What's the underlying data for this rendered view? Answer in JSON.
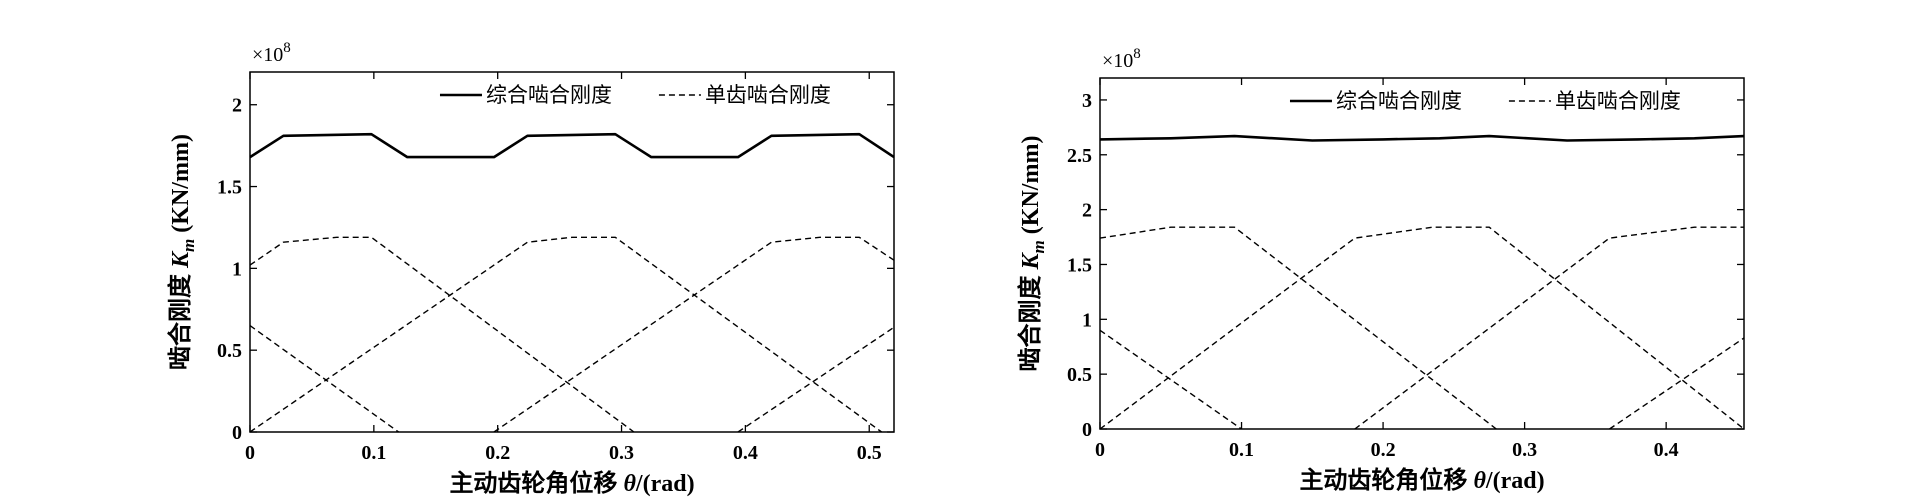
{
  "chart_data": [
    {
      "type": "line",
      "title": "",
      "xlabel_prefix": "主动齿轮角位移 ",
      "xlabel_symbol": "θ",
      "xlabel_suffix": "/(rad)",
      "ylabel_prefix": "啮合刚度 ",
      "ylabel_symbol": "K",
      "ylabel_sub": "m",
      "ylabel_suffix": " (KN/mm)",
      "y_multiplier": "×10",
      "y_multiplier_exp": "8",
      "xlim": [
        0,
        0.52
      ],
      "ylim": [
        0,
        2.2
      ],
      "xticks": [
        0,
        0.1,
        0.2,
        0.3,
        0.4,
        0.5
      ],
      "xtick_labels": [
        "0",
        "0.1",
        "0.2",
        "0.3",
        "0.4",
        "0.5"
      ],
      "yticks": [
        0,
        0.5,
        1,
        1.5,
        2
      ],
      "ytick_labels": [
        "0",
        "0.5",
        "1",
        "1.5",
        "2"
      ],
      "legend_position": "top-right",
      "legend": [
        "综合啮合刚度",
        "单齿啮合刚度"
      ],
      "series": [
        {
          "name": "综合啮合刚度",
          "style": "solid",
          "x": [
            0,
            0.027,
            0.098,
            0.127,
            0.197,
            0.224,
            0.295,
            0.324,
            0.394,
            0.421,
            0.492,
            0.52
          ],
          "y": [
            1.68,
            1.81,
            1.82,
            1.68,
            1.68,
            1.81,
            1.82,
            1.68,
            1.68,
            1.81,
            1.82,
            1.68
          ]
        },
        {
          "name": "单齿啮合刚度",
          "style": "dashed",
          "x": [
            0,
            0.12
          ],
          "y": [
            0.65,
            0
          ]
        },
        {
          "name": "单齿啮合刚度",
          "style": "dashed",
          "x": [
            0,
            0.027,
            0.07,
            0.098,
            0.31
          ],
          "y": [
            1.02,
            1.16,
            1.19,
            1.19,
            0
          ]
        },
        {
          "name": "单齿啮合刚度",
          "style": "dashed",
          "x": [
            0,
            0.197,
            0.224,
            0.26,
            0.295,
            0.51
          ],
          "y": [
            0,
            1.02,
            1.16,
            1.19,
            1.19,
            0
          ]
        },
        {
          "name": "单齿啮合刚度",
          "style": "dashed",
          "x": [
            0.197,
            0.394,
            0.421,
            0.46,
            0.492,
            0.52
          ],
          "y": [
            0,
            1.02,
            1.16,
            1.19,
            1.19,
            1.05
          ]
        },
        {
          "name": "单齿啮合刚度",
          "style": "dashed",
          "x": [
            0.394,
            0.52
          ],
          "y": [
            0,
            0.64
          ]
        }
      ]
    },
    {
      "type": "line",
      "title": "",
      "xlabel_prefix": "主动齿轮角位移 ",
      "xlabel_symbol": "θ",
      "xlabel_suffix": "/(rad)",
      "ylabel_prefix": "啮合刚度 ",
      "ylabel_symbol": "K",
      "ylabel_sub": "m",
      "ylabel_suffix": " (KN/mm)",
      "y_multiplier": "×10",
      "y_multiplier_exp": "8",
      "xlim": [
        0,
        0.455
      ],
      "ylim": [
        0,
        3.2
      ],
      "xticks": [
        0,
        0.1,
        0.2,
        0.3,
        0.4
      ],
      "xtick_labels": [
        "0",
        "0.1",
        "0.2",
        "0.3",
        "0.4"
      ],
      "yticks": [
        0,
        0.5,
        1,
        1.5,
        2,
        2.5,
        3
      ],
      "ytick_labels": [
        "0",
        "0.5",
        "1",
        "1.5",
        "2",
        "2.5",
        "3"
      ],
      "legend_position": "top-right",
      "legend": [
        "综合啮合刚度",
        "单齿啮合刚度"
      ],
      "series": [
        {
          "name": "综合啮合刚度",
          "style": "solid",
          "x": [
            0,
            0.05,
            0.095,
            0.15,
            0.2,
            0.24,
            0.275,
            0.33,
            0.38,
            0.42,
            0.455
          ],
          "y": [
            2.64,
            2.65,
            2.67,
            2.63,
            2.64,
            2.65,
            2.67,
            2.63,
            2.64,
            2.65,
            2.67
          ]
        },
        {
          "name": "单齿啮合刚度",
          "style": "dashed",
          "x": [
            0,
            0.1
          ],
          "y": [
            0.9,
            0
          ]
        },
        {
          "name": "单齿啮合刚度",
          "style": "dashed",
          "x": [
            0,
            0.05,
            0.095,
            0.28
          ],
          "y": [
            1.74,
            1.84,
            1.84,
            0
          ]
        },
        {
          "name": "单齿啮合刚度",
          "style": "dashed",
          "x": [
            0,
            0.18,
            0.235,
            0.275,
            0.455
          ],
          "y": [
            0,
            1.74,
            1.84,
            1.84,
            0
          ]
        },
        {
          "name": "单齿啮合刚度",
          "style": "dashed",
          "x": [
            0.18,
            0.36,
            0.42,
            0.455
          ],
          "y": [
            0,
            1.74,
            1.84,
            1.84
          ]
        },
        {
          "name": "单齿啮合刚度",
          "style": "dashed",
          "x": [
            0.36,
            0.455
          ],
          "y": [
            0,
            0.83
          ]
        }
      ]
    }
  ]
}
